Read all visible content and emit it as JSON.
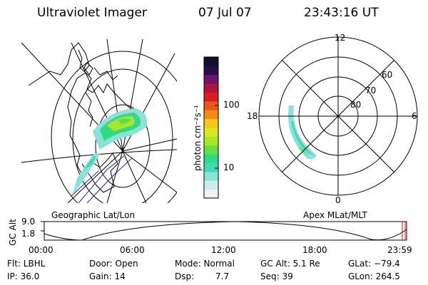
{
  "header": {
    "instrument": "Ultraviolet Imager",
    "date": "07 Jul 07",
    "time": "23:43:16 UT"
  },
  "left_panel": {
    "label": "Geographic Lat/Lon"
  },
  "right_panel": {
    "label": "Apex MLat/MLT",
    "mlt_labels": [
      "12",
      "18",
      "6",
      "0"
    ],
    "lat_labels": [
      "60",
      "70",
      "80"
    ]
  },
  "colorbar": {
    "unit": "photon cm⁻²s⁻¹",
    "tick_labels": [
      "100",
      "10"
    ],
    "scale": "log",
    "colors": [
      "#f2f2f2",
      "#ccecec",
      "#8fe0d8",
      "#3fd9b8",
      "#33d98a",
      "#66dd44",
      "#a6e62e",
      "#d9e81f",
      "#f2c81a",
      "#f28c14",
      "#e85a14",
      "#d81e1e",
      "#b0143c",
      "#6e1464",
      "#2a0d4a",
      "#101030"
    ]
  },
  "timeline": {
    "axis_label": "GC Alt",
    "y_ticks": [
      "9.0",
      "1.8"
    ],
    "x_ticks": [
      "00:00",
      "06:00",
      "12:00",
      "18:00",
      "23:59"
    ],
    "marker_color": "#e01010"
  },
  "info": {
    "flt": "Flt: LBHL",
    "door": "Door: Open",
    "mode": "Mode: Normal",
    "gc_alt": "GC Alt: 5.1 Re",
    "glat": "GLat: −79.4",
    "ip": "IP: 36.0",
    "gain": "Gain: 14",
    "dsp_label": "Dsp:",
    "dsp_value": "7.7",
    "seq": "Seq: 39",
    "glon": "GLon: 264.5"
  }
}
